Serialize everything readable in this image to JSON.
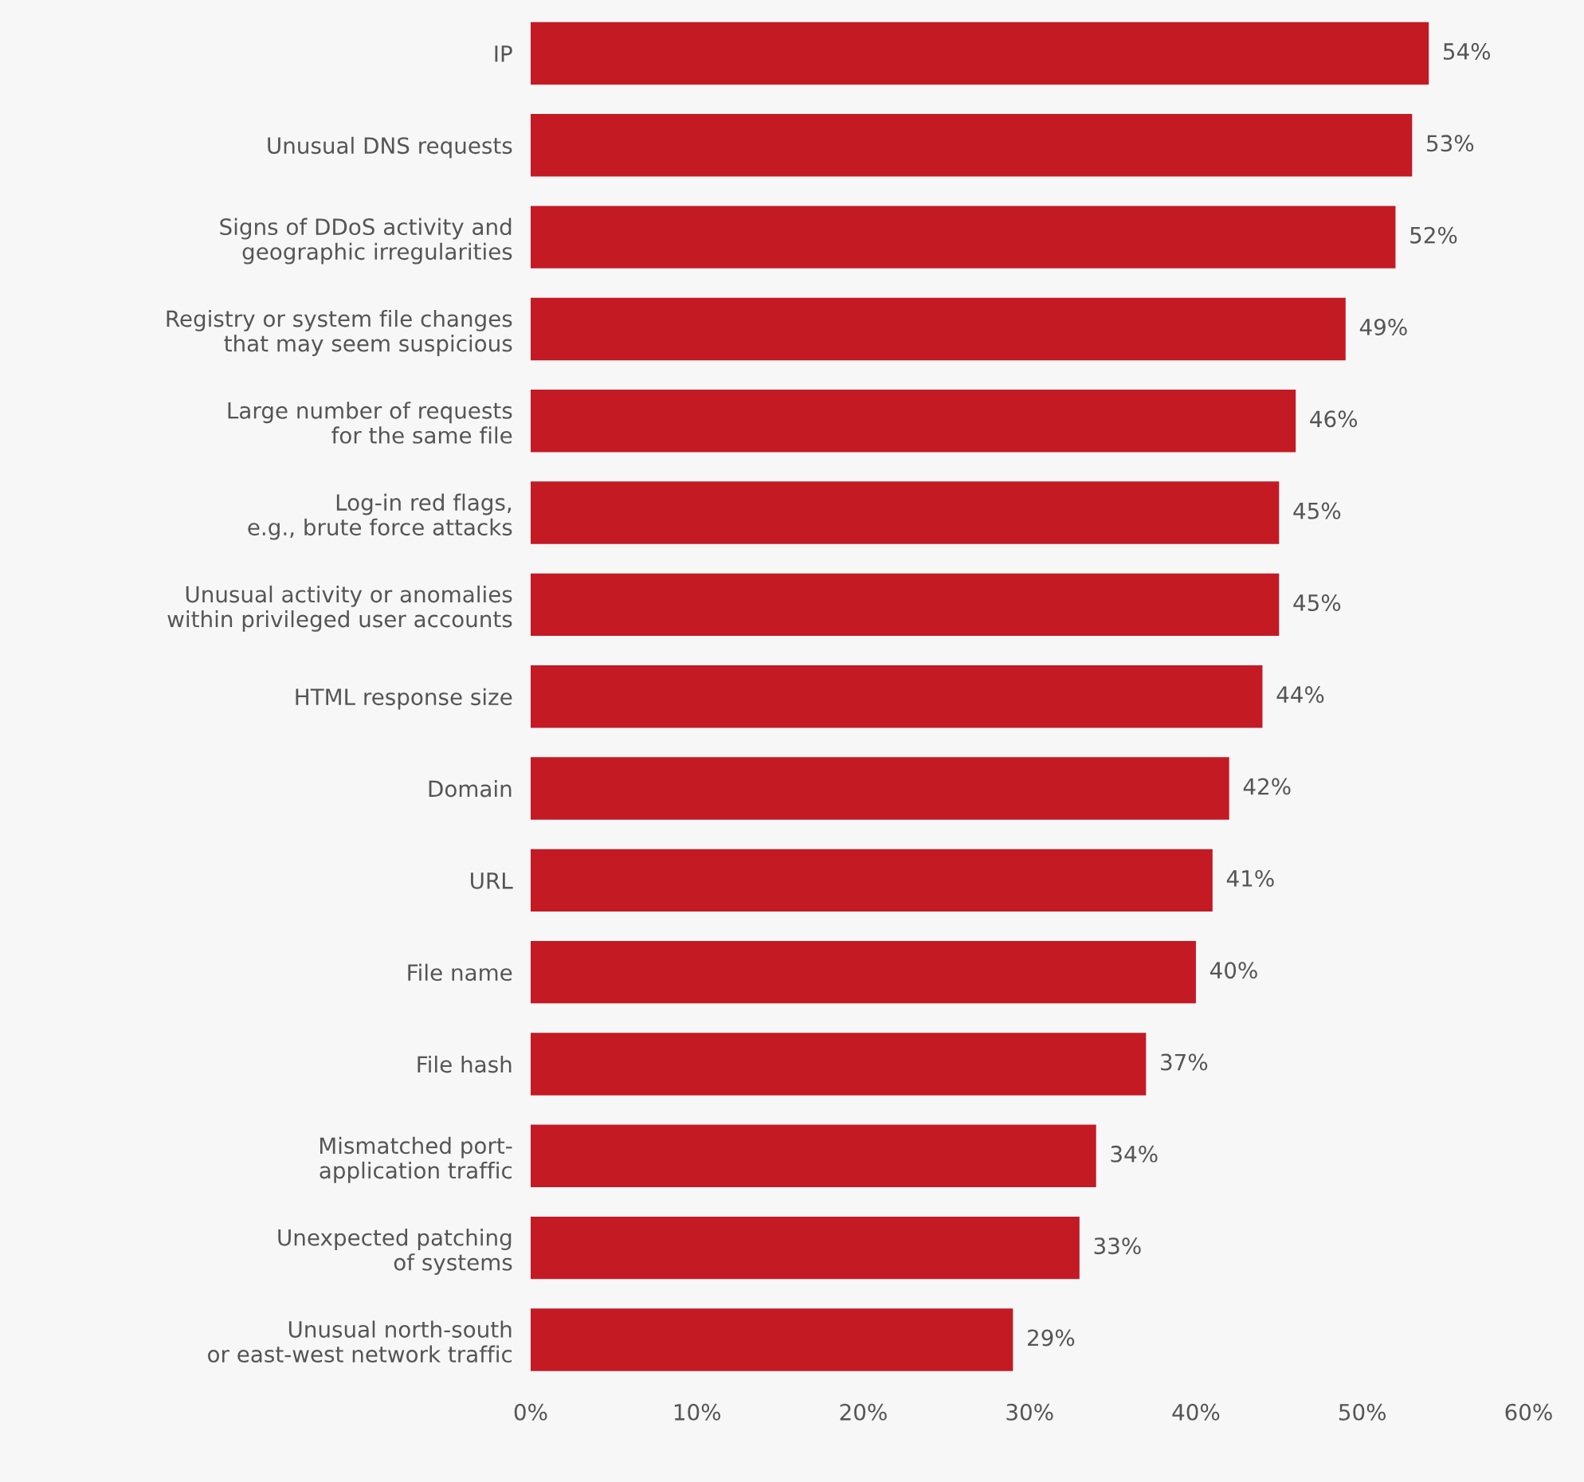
{
  "chart_data": {
    "type": "bar",
    "orientation": "horizontal",
    "categories": [
      "IP",
      "Unusual DNS requests",
      "Signs of DDoS activity and\ngeographic irregularities",
      "Registry or system file changes\nthat may seem suspicious",
      "Large number of requests\nfor the same file",
      "Log-in red flags,\ne.g., brute force attacks",
      "Unusual activity or anomalies\nwithin privileged user accounts",
      "HTML response size",
      "Domain",
      "URL",
      "File name",
      "File hash",
      "Mismatched port-\napplication traffic",
      "Unexpected patching\nof systems",
      "Unusual north-south\nor east-west network traffic"
    ],
    "values": [
      54,
      53,
      52,
      49,
      46,
      45,
      45,
      44,
      42,
      41,
      40,
      37,
      34,
      33,
      29
    ],
    "value_labels": [
      "54%",
      "53%",
      "52%",
      "49%",
      "46%",
      "45%",
      "45%",
      "44%",
      "42%",
      "41%",
      "40%",
      "37%",
      "34%",
      "33%",
      "29%"
    ],
    "color": "#c41a24",
    "xlim": [
      0,
      60
    ],
    "xticks": [
      {
        "value": 0,
        "label": "0%"
      },
      {
        "value": 10,
        "label": "10%"
      },
      {
        "value": 20,
        "label": "20%"
      },
      {
        "value": 30,
        "label": "30%"
      },
      {
        "value": 40,
        "label": "40%"
      },
      {
        "value": 50,
        "label": "50%"
      },
      {
        "value": 60,
        "label": "60%"
      }
    ],
    "grid": false
  }
}
